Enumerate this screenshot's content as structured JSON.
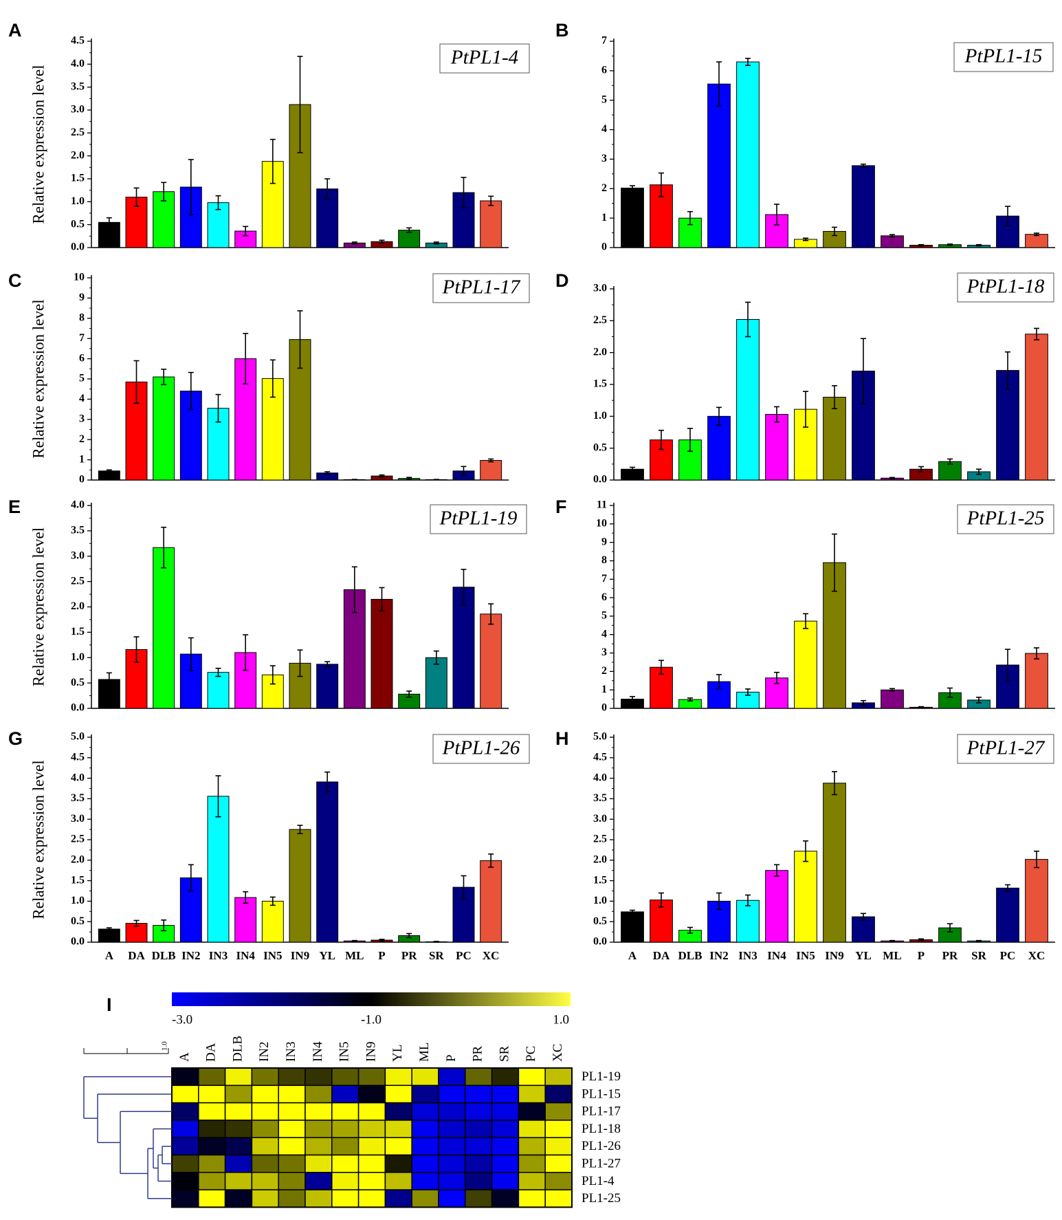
{
  "figure_labels": [
    "A",
    "B",
    "C",
    "D",
    "E",
    "F",
    "G",
    "H",
    "I"
  ],
  "colors": {
    "bars": [
      "#000000",
      "#ff0000",
      "#00ff00",
      "#0000ff",
      "#00ffff",
      "#ff00ff",
      "#ffff00",
      "#808000",
      "#000080",
      "#800080",
      "#800000",
      "#008000",
      "#008080",
      "#000080",
      "#e8533a"
    ]
  },
  "chart_data": [
    {
      "type": "bar",
      "panel": "A",
      "title": "PtPL1-4",
      "ylabel": "Relative expression level",
      "xlabel": "",
      "categories": [
        "A",
        "DA",
        "DLB",
        "IN2",
        "IN3",
        "IN4",
        "IN5",
        "IN9",
        "YL",
        "ML",
        "P",
        "PR",
        "SR",
        "PC",
        "XC"
      ],
      "values": [
        0.55,
        1.1,
        1.22,
        1.32,
        0.98,
        0.36,
        1.88,
        3.12,
        1.28,
        0.1,
        0.13,
        0.38,
        0.1,
        1.2,
        1.02
      ],
      "errors": [
        0.1,
        0.2,
        0.2,
        0.6,
        0.15,
        0.1,
        0.48,
        1.05,
        0.22,
        0.02,
        0.03,
        0.05,
        0.02,
        0.33,
        0.1
      ],
      "ylim": [
        0,
        4.5
      ],
      "yticks": [
        "0.0",
        "0.5",
        "1.0",
        "1.5",
        "2.0",
        "2.5",
        "3.0",
        "3.5",
        "4.0",
        "4.5"
      ],
      "show_xticks": false
    },
    {
      "type": "bar",
      "panel": "B",
      "title": "PtPL1-15",
      "ylabel": "",
      "xlabel": "",
      "categories": [
        "A",
        "DA",
        "DLB",
        "IN2",
        "IN3",
        "IN4",
        "IN5",
        "IN9",
        "YL",
        "ML",
        "P",
        "PR",
        "SR",
        "PC",
        "XC"
      ],
      "values": [
        2.02,
        2.13,
        1.0,
        5.55,
        6.3,
        1.12,
        0.28,
        0.55,
        2.78,
        0.4,
        0.08,
        0.1,
        0.08,
        1.07,
        0.45
      ],
      "errors": [
        0.08,
        0.4,
        0.22,
        0.75,
        0.12,
        0.35,
        0.04,
        0.14,
        0.05,
        0.04,
        0.02,
        0.02,
        0.02,
        0.33,
        0.04
      ],
      "ylim": [
        0,
        7
      ],
      "yticks": [
        "0",
        "1",
        "2",
        "3",
        "4",
        "5",
        "6",
        "7"
      ],
      "show_xticks": false
    },
    {
      "type": "bar",
      "panel": "C",
      "title": "PtPL1-17",
      "ylabel": "Relative expression level",
      "xlabel": "",
      "categories": [
        "A",
        "DA",
        "DLB",
        "IN2",
        "IN3",
        "IN4",
        "IN5",
        "IN9",
        "YL",
        "ML",
        "P",
        "PR",
        "SR",
        "PC",
        "XC"
      ],
      "values": [
        0.45,
        4.85,
        5.1,
        4.4,
        3.55,
        6.0,
        5.02,
        6.95,
        0.35,
        0.02,
        0.2,
        0.08,
        0.02,
        0.45,
        0.97
      ],
      "errors": [
        0.05,
        1.05,
        0.38,
        0.92,
        0.68,
        1.25,
        0.92,
        1.42,
        0.06,
        0.01,
        0.05,
        0.05,
        0.01,
        0.22,
        0.07
      ],
      "ylim": [
        0,
        10
      ],
      "yticks": [
        "0",
        "1",
        "2",
        "3",
        "4",
        "5",
        "6",
        "7",
        "8",
        "9",
        "10"
      ],
      "show_xticks": false
    },
    {
      "type": "bar",
      "panel": "D",
      "title": "PtPL1-18",
      "ylabel": "",
      "xlabel": "",
      "categories": [
        "A",
        "DA",
        "DLB",
        "IN2",
        "IN3",
        "IN4",
        "IN5",
        "IN9",
        "YL",
        "ML",
        "P",
        "PR",
        "SR",
        "PC",
        "XC"
      ],
      "values": [
        0.17,
        0.63,
        0.63,
        1.0,
        2.52,
        1.03,
        1.11,
        1.3,
        1.71,
        0.03,
        0.17,
        0.29,
        0.13,
        1.72,
        2.29
      ],
      "errors": [
        0.03,
        0.15,
        0.18,
        0.14,
        0.27,
        0.12,
        0.28,
        0.18,
        0.51,
        0.01,
        0.04,
        0.04,
        0.04,
        0.29,
        0.09
      ],
      "ylim": [
        0,
        3.0
      ],
      "yticks": [
        "0.0",
        "0.5",
        "1.0",
        "1.5",
        "2.0",
        "2.5",
        "3.0"
      ],
      "show_xticks": false
    },
    {
      "type": "bar",
      "panel": "E",
      "title": "PtPL1-19",
      "ylabel": "Relative expression level",
      "xlabel": "",
      "categories": [
        "A",
        "DA",
        "DLB",
        "IN2",
        "IN3",
        "IN4",
        "IN5",
        "IN9",
        "YL",
        "ML",
        "P",
        "PR",
        "SR",
        "PC",
        "XC"
      ],
      "values": [
        0.57,
        1.16,
        3.17,
        1.07,
        0.71,
        1.1,
        0.66,
        0.89,
        0.87,
        2.34,
        2.15,
        0.28,
        1.0,
        2.39,
        1.86
      ],
      "errors": [
        0.13,
        0.25,
        0.4,
        0.32,
        0.08,
        0.35,
        0.18,
        0.26,
        0.05,
        0.45,
        0.23,
        0.06,
        0.13,
        0.35,
        0.2
      ],
      "ylim": [
        0,
        4.0
      ],
      "yticks": [
        "0.0",
        "0.5",
        "1.0",
        "1.5",
        "2.0",
        "2.5",
        "3.0",
        "3.5",
        "4.0"
      ],
      "show_xticks": false
    },
    {
      "type": "bar",
      "panel": "F",
      "title": "PtPL1-25",
      "ylabel": "",
      "xlabel": "",
      "categories": [
        "A",
        "DA",
        "DLB",
        "IN2",
        "IN3",
        "IN4",
        "IN5",
        "IN9",
        "YL",
        "ML",
        "P",
        "PR",
        "SR",
        "PC",
        "XC"
      ],
      "values": [
        0.5,
        2.23,
        0.48,
        1.45,
        0.88,
        1.65,
        4.73,
        7.9,
        0.3,
        1.0,
        0.06,
        0.85,
        0.45,
        2.35,
        2.98
      ],
      "errors": [
        0.14,
        0.37,
        0.08,
        0.38,
        0.17,
        0.3,
        0.4,
        1.55,
        0.12,
        0.07,
        0.03,
        0.25,
        0.15,
        0.85,
        0.3
      ],
      "ylim": [
        0,
        11
      ],
      "yticks": [
        "0",
        "1",
        "2",
        "3",
        "4",
        "5",
        "6",
        "7",
        "8",
        "9",
        "10",
        "11"
      ],
      "show_xticks": false
    },
    {
      "type": "bar",
      "panel": "G",
      "title": "PtPL1-26",
      "ylabel": "Relative expression level",
      "xlabel": "",
      "categories": [
        "A",
        "DA",
        "DLB",
        "IN2",
        "IN3",
        "IN4",
        "IN5",
        "IN9",
        "YL",
        "ML",
        "P",
        "PR",
        "SR",
        "PC",
        "XC"
      ],
      "values": [
        0.32,
        0.46,
        0.41,
        1.57,
        3.56,
        1.09,
        1.0,
        2.75,
        3.91,
        0.03,
        0.05,
        0.16,
        0.01,
        1.34,
        1.99
      ],
      "errors": [
        0.03,
        0.07,
        0.13,
        0.32,
        0.5,
        0.14,
        0.1,
        0.1,
        0.24,
        0.01,
        0.02,
        0.05,
        0.01,
        0.28,
        0.16
      ],
      "ylim": [
        0,
        5.0
      ],
      "yticks": [
        "0.0",
        "0.5",
        "1.0",
        "1.5",
        "2.0",
        "2.5",
        "3.0",
        "3.5",
        "4.0",
        "4.5",
        "5.0"
      ],
      "show_xticks": true
    },
    {
      "type": "bar",
      "panel": "H",
      "title": "PtPL1-27",
      "ylabel": "",
      "xlabel": "",
      "categories": [
        "A",
        "DA",
        "DLB",
        "IN2",
        "IN3",
        "IN4",
        "IN5",
        "IN9",
        "YL",
        "ML",
        "P",
        "PR",
        "SR",
        "PC",
        "XC"
      ],
      "values": [
        0.74,
        1.03,
        0.29,
        1.0,
        1.02,
        1.75,
        2.22,
        3.88,
        0.62,
        0.03,
        0.06,
        0.35,
        0.03,
        1.32,
        2.02
      ],
      "errors": [
        0.04,
        0.17,
        0.07,
        0.2,
        0.13,
        0.14,
        0.25,
        0.28,
        0.08,
        0.01,
        0.02,
        0.1,
        0.01,
        0.08,
        0.2
      ],
      "ylim": [
        0,
        5.0
      ],
      "yticks": [
        "0.0",
        "0.5",
        "1.0",
        "1.5",
        "2.0",
        "2.5",
        "3.0",
        "3.5",
        "4.0",
        "4.5",
        "5.0"
      ],
      "show_xticks": true
    },
    {
      "type": "heatmap",
      "panel": "I",
      "columns": [
        "A",
        "DA",
        "DLB",
        "IN2",
        "IN3",
        "IN4",
        "IN5",
        "IN9",
        "YL",
        "ML",
        "P",
        "PR",
        "SR",
        "PC",
        "XC"
      ],
      "rows": [
        "PL1-19",
        "PL1-15",
        "PL1-17",
        "PL1-18",
        "PL1-26",
        "PL1-27",
        "PL1-4",
        "PL1-25"
      ],
      "scale_min": -3.0,
      "scale_mid": -1.0,
      "scale_max": 1.0,
      "scale_labels": [
        "-3.0",
        "-1.0",
        "1.0"
      ],
      "tree_scale_label": "1.0",
      "values": [
        [
          -1.2,
          -0.2,
          0.9,
          -0.1,
          -0.5,
          -0.6,
          -0.3,
          -0.2,
          0.9,
          0.8,
          -2.6,
          -0.2,
          -0.7,
          1.0,
          0.5
        ],
        [
          1.0,
          1.0,
          0.2,
          1.0,
          1.0,
          0.1,
          -2.5,
          -1.2,
          1.0,
          -2.1,
          -2.9,
          -2.9,
          -2.9,
          0.6,
          -1.8
        ],
        [
          -1.8,
          1.0,
          1.0,
          1.0,
          1.0,
          1.0,
          1.0,
          1.0,
          -1.8,
          -2.7,
          -2.6,
          -2.8,
          -2.8,
          -1.3,
          0.1
        ],
        [
          -2.8,
          -0.7,
          -0.6,
          0.1,
          1.0,
          0.2,
          0.3,
          0.6,
          0.7,
          -2.9,
          -2.6,
          -2.4,
          -2.7,
          0.8,
          1.0
        ],
        [
          -2.2,
          -1.3,
          -1.6,
          0.6,
          1.0,
          0.4,
          0.1,
          0.9,
          1.0,
          -2.9,
          -2.7,
          -2.7,
          -2.9,
          0.4,
          0.9
        ],
        [
          -0.5,
          0.1,
          -2.4,
          -0.2,
          -0.1,
          0.8,
          1.0,
          1.0,
          -0.8,
          -2.9,
          -2.7,
          -2.3,
          -2.9,
          0.2,
          1.0
        ],
        [
          -1.1,
          0.2,
          0.5,
          0.5,
          0.0,
          -2.2,
          0.9,
          1.0,
          0.5,
          -2.9,
          -2.8,
          -2.0,
          -2.9,
          0.5,
          0.1
        ],
        [
          -1.3,
          1.0,
          -1.3,
          0.6,
          -0.1,
          0.5,
          1.0,
          1.0,
          -2.1,
          0.1,
          -3.0,
          -0.5,
          -1.3,
          1.0,
          1.0
        ]
      ]
    }
  ]
}
